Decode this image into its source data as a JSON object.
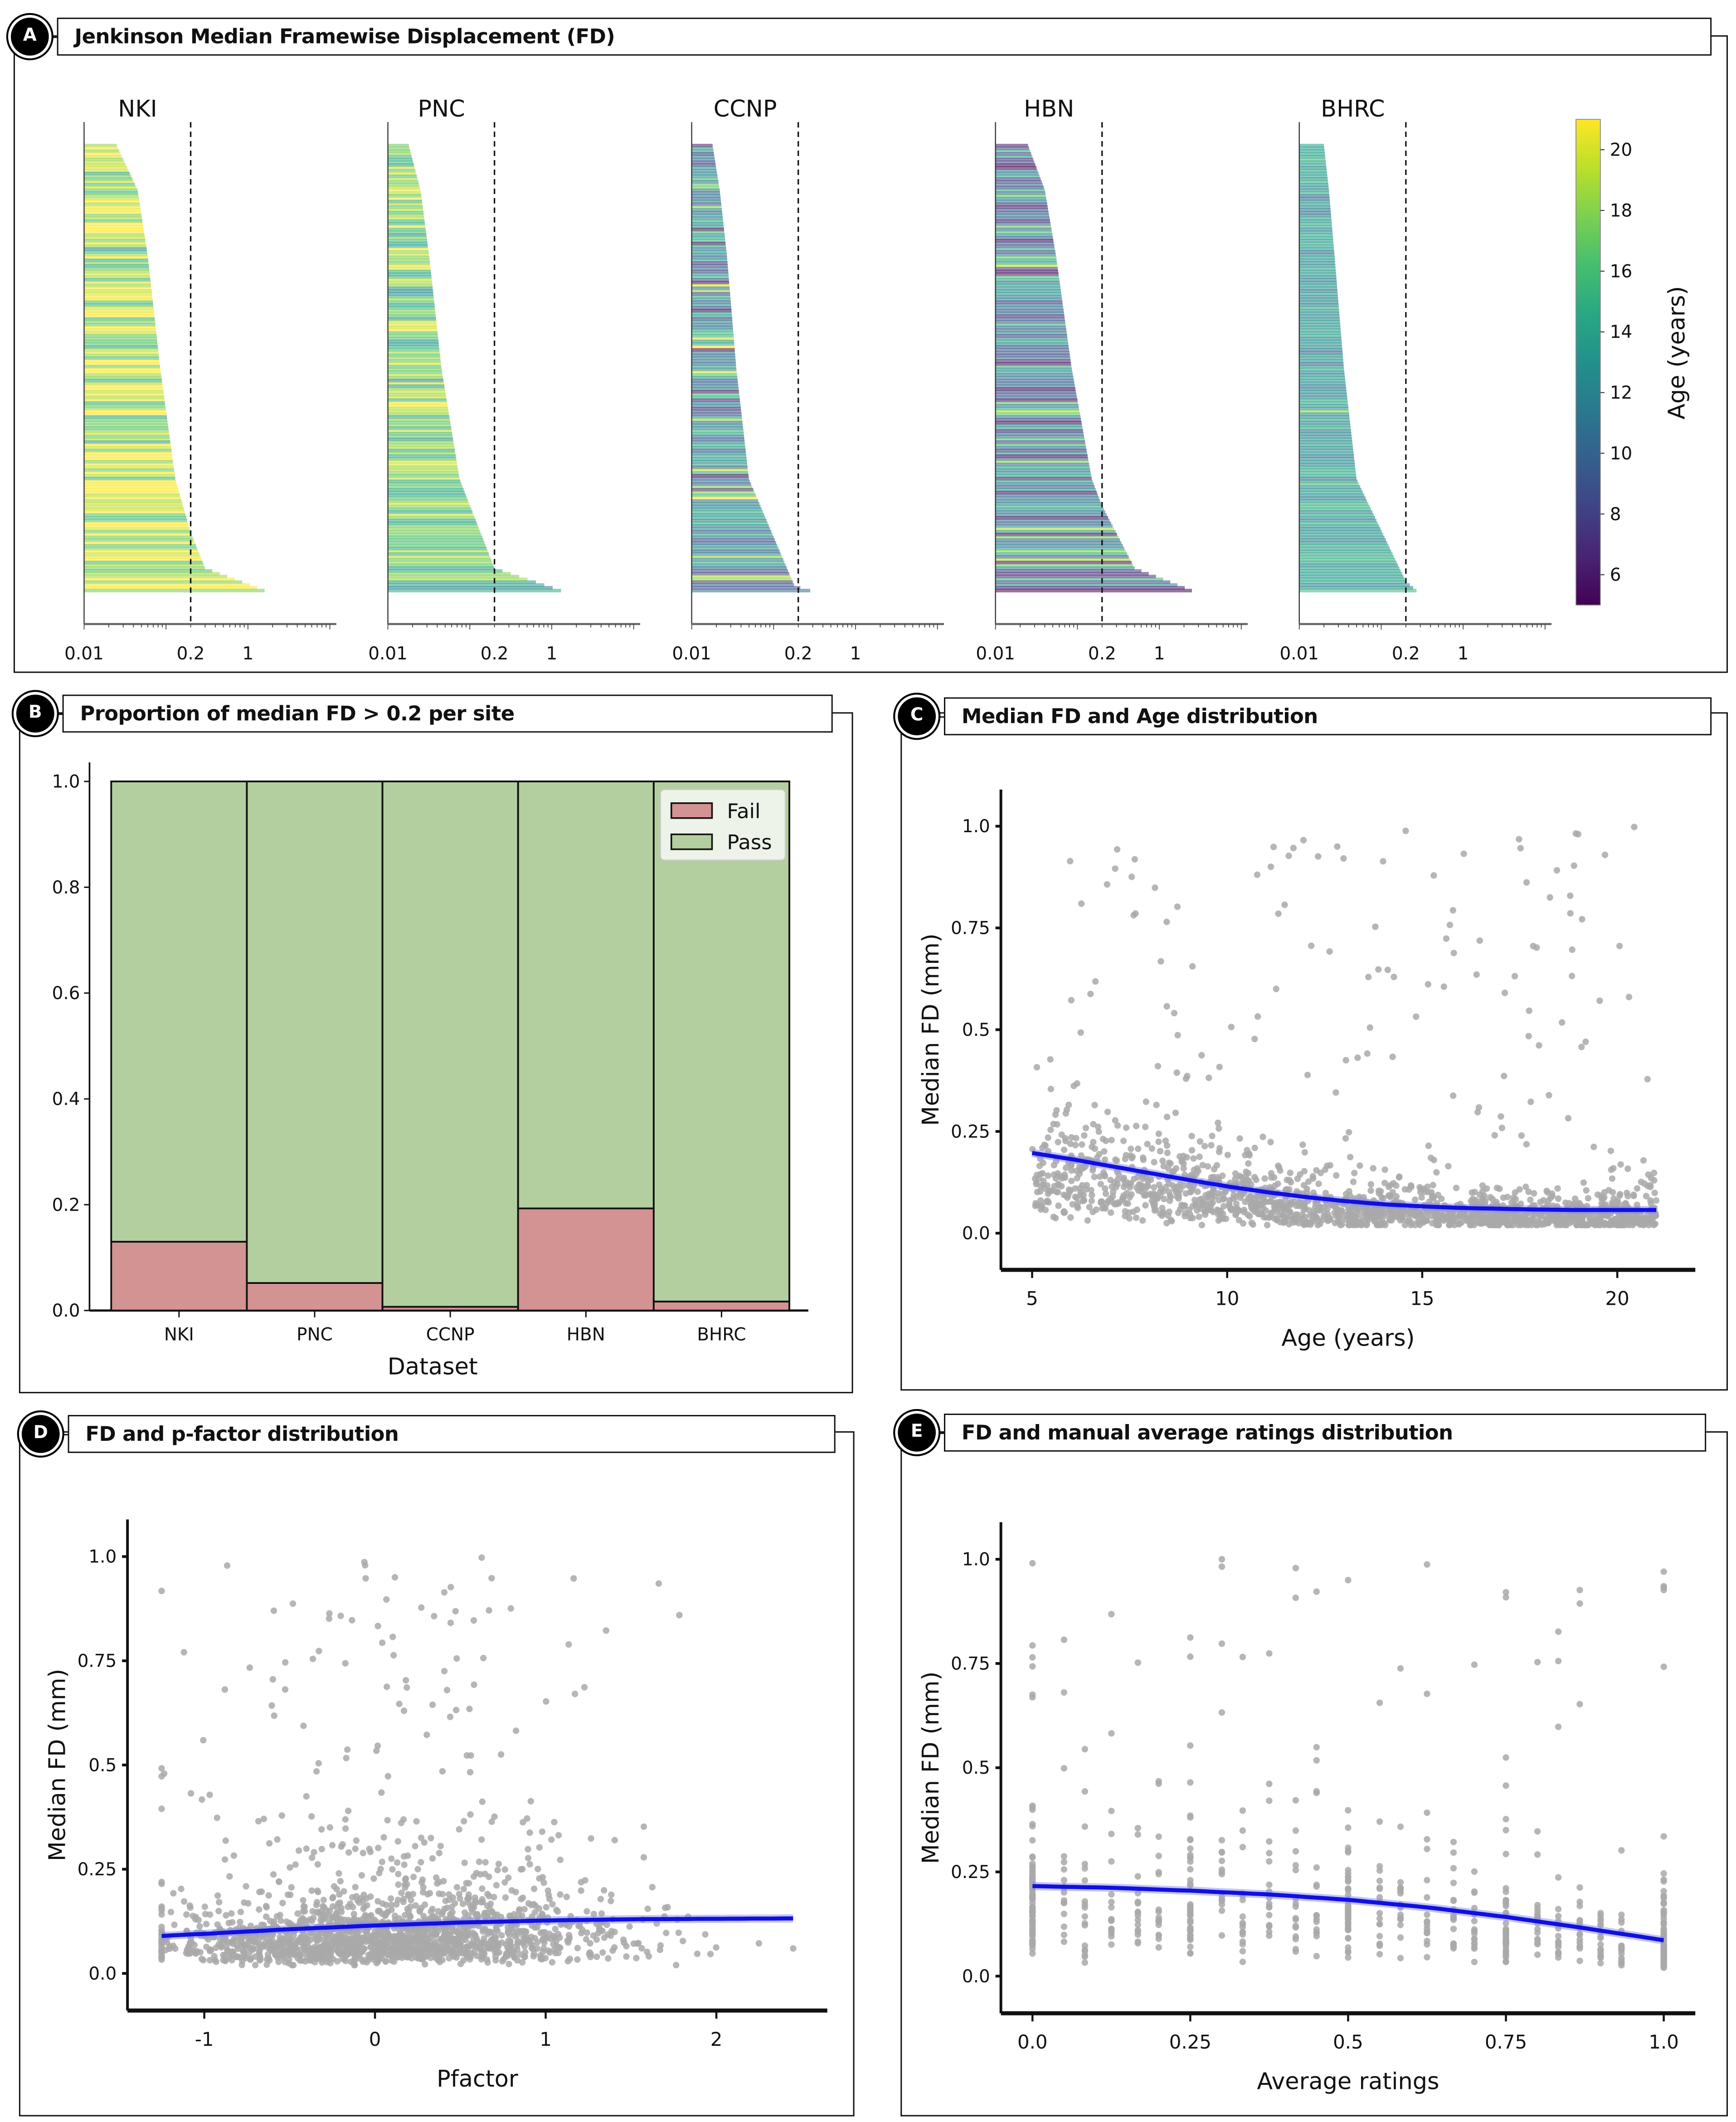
{
  "panels": {
    "A": {
      "badge": "A",
      "title": "Jenkinson Median Framewise Displacement (FD)"
    },
    "B": {
      "badge": "B",
      "title": "Proportion of median FD > 0.2 per site"
    },
    "C": {
      "badge": "C",
      "title": "Median FD and Age distribution"
    },
    "D": {
      "badge": "D",
      "title": "FD and p-factor distribution"
    },
    "E": {
      "badge": "E",
      "title": "FD and manual average ratings distribution"
    }
  },
  "chart_data": [
    {
      "id": "A",
      "type": "bar",
      "subtype": "sorted horizontal bars (per-subject median FD), colored by age",
      "title": "Jenkinson Median Framewise Displacement (FD)",
      "xscale": "log",
      "xlim": [
        0.01,
        12
      ],
      "xticks": [
        0.01,
        0.2,
        1
      ],
      "xtick_labels": [
        "0.01",
        "0.2",
        "1"
      ],
      "threshold": 0.2,
      "threshold_style": "dashed",
      "sites": [
        {
          "name": "NKI",
          "fd_quantiles": {
            "q00": 0.025,
            "q10": 0.045,
            "q25": 0.06,
            "q50": 0.085,
            "q75": 0.13,
            "q87": 0.2,
            "q95": 0.3,
            "q100": 1.6
          },
          "age_mean": 19,
          "age_spread": 2.5
        },
        {
          "name": "PNC",
          "fd_quantiles": {
            "q00": 0.018,
            "q10": 0.025,
            "q25": 0.032,
            "q50": 0.045,
            "q75": 0.075,
            "q95": 0.2,
            "q100": 1.3
          },
          "age_mean": 17,
          "age_spread": 2.5
        },
        {
          "name": "CCNP",
          "fd_quantiles": {
            "q00": 0.018,
            "q10": 0.022,
            "q25": 0.027,
            "q50": 0.035,
            "q75": 0.05,
            "q99": 0.18,
            "q100": 0.28
          },
          "age_mean": 12,
          "age_spread": 3.5
        },
        {
          "name": "HBN",
          "fd_quantiles": {
            "q00": 0.025,
            "q10": 0.04,
            "q25": 0.055,
            "q50": 0.085,
            "q75": 0.15,
            "q81": 0.2,
            "q95": 0.5,
            "q100": 2.5
          },
          "age_mean": 11,
          "age_spread": 3.5
        },
        {
          "name": "BHRC",
          "fd_quantiles": {
            "q00": 0.02,
            "q10": 0.023,
            "q25": 0.027,
            "q50": 0.035,
            "q75": 0.05,
            "q98": 0.2,
            "q100": 0.27
          },
          "age_mean": 13,
          "age_spread": 1.5
        }
      ],
      "colorbar": {
        "label": "Age (years)",
        "cmap": "viridis",
        "range": [
          5,
          21
        ],
        "ticks": [
          6,
          8,
          10,
          12,
          14,
          16,
          18,
          20
        ]
      }
    },
    {
      "id": "B",
      "type": "bar",
      "subtype": "stacked",
      "title": "Proportion of median FD > 0.2 per site",
      "categories": [
        "NKI",
        "PNC",
        "CCNP",
        "HBN",
        "BHRC"
      ],
      "series": [
        {
          "name": "Fail",
          "color": "#d39393",
          "values": [
            0.13,
            0.052,
            0.007,
            0.193,
            0.017
          ]
        },
        {
          "name": "Pass",
          "color": "#b3cf9f",
          "values": [
            0.87,
            0.948,
            0.993,
            0.807,
            0.983
          ]
        }
      ],
      "xlabel": "Dataset",
      "ylabel": "",
      "ylim": [
        0,
        1.0
      ],
      "yticks": [
        "0.0",
        "0.2",
        "0.4",
        "0.6",
        "0.8",
        "1.0"
      ],
      "legend": {
        "position": "top-right",
        "entries": [
          "Fail",
          "Pass"
        ]
      }
    },
    {
      "id": "C",
      "type": "scatter",
      "title": "Median FD and Age distribution",
      "xlabel": "Age (years)",
      "ylabel": "Median FD (mm)",
      "xlim": [
        4.2,
        22
      ],
      "ylim": [
        -0.05,
        1.05
      ],
      "xticks": [
        "5",
        "10",
        "15",
        "20"
      ],
      "xtick_values": [
        5,
        10,
        15,
        20
      ],
      "yticks": [
        "0.0",
        "0.25",
        "0.5",
        "0.75",
        "1.0"
      ],
      "ytick_values": [
        0,
        0.25,
        0.5,
        0.75,
        1.0
      ],
      "point_color": "#a9a9a9",
      "x_range_data": [
        5,
        21
      ],
      "fit": {
        "color": "#1010e0",
        "x": [
          5,
          6,
          7,
          8,
          9,
          10,
          11,
          12,
          13,
          14,
          15,
          16,
          17,
          18,
          19,
          20,
          21
        ],
        "y": [
          0.197,
          0.182,
          0.165,
          0.148,
          0.131,
          0.115,
          0.101,
          0.089,
          0.079,
          0.071,
          0.066,
          0.062,
          0.06,
          0.058,
          0.057,
          0.057,
          0.057
        ]
      }
    },
    {
      "id": "D",
      "type": "scatter",
      "title": "FD and p-factor distribution",
      "xlabel": "Pfactor",
      "ylabel": "Median FD (mm)",
      "xlim": [
        -1.45,
        2.65
      ],
      "ylim": [
        -0.05,
        1.05
      ],
      "xticks": [
        "-1",
        "0",
        "1",
        "2"
      ],
      "xtick_values": [
        -1,
        0,
        1,
        2
      ],
      "yticks": [
        "0.0",
        "0.25",
        "0.5",
        "0.75",
        "1.0"
      ],
      "ytick_values": [
        0,
        0.25,
        0.5,
        0.75,
        1.0
      ],
      "point_color": "#a9a9a9",
      "x_range_data": [
        -1.25,
        2.45
      ],
      "fit": {
        "color": "#1010e0",
        "x": [
          -1.25,
          -1,
          -0.5,
          0,
          0.5,
          1,
          1.5,
          2,
          2.45
        ],
        "y": [
          0.09,
          0.095,
          0.106,
          0.115,
          0.122,
          0.127,
          0.13,
          0.131,
          0.132
        ]
      }
    },
    {
      "id": "E",
      "type": "scatter",
      "title": "FD and manual average ratings distribution",
      "xlabel": "Average ratings",
      "ylabel": "Median FD (mm)",
      "xlim": [
        -0.05,
        1.05
      ],
      "ylim": [
        -0.05,
        1.05
      ],
      "xticks": [
        "0.0",
        "0.25",
        "0.5",
        "0.75",
        "1.0"
      ],
      "xtick_values": [
        0,
        0.25,
        0.5,
        0.75,
        1.0
      ],
      "yticks": [
        "0.0",
        "0.25",
        "0.5",
        "0.75",
        "1.0"
      ],
      "ytick_values": [
        0,
        0.25,
        0.5,
        0.75,
        1.0
      ],
      "point_color": "#a9a9a9",
      "x_levels_note": "ratings are discrete fractions (vertical columns of points)",
      "fit": {
        "color": "#1010e0",
        "x": [
          0,
          0.125,
          0.25,
          0.375,
          0.5,
          0.625,
          0.75,
          0.875,
          1.0
        ],
        "y": [
          0.216,
          0.212,
          0.205,
          0.196,
          0.183,
          0.165,
          0.142,
          0.115,
          0.086
        ]
      }
    }
  ]
}
